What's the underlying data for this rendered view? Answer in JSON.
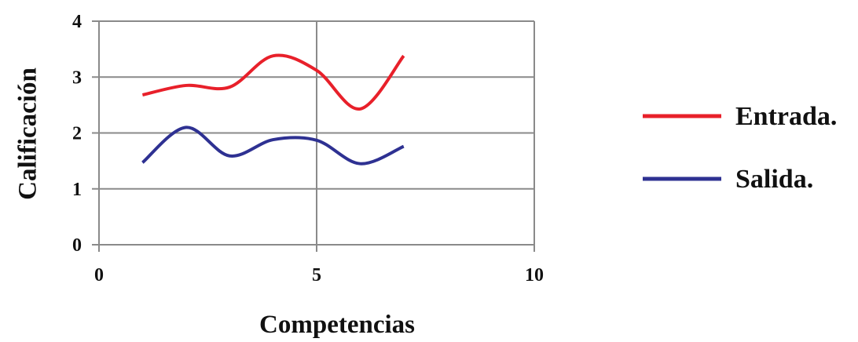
{
  "chart_data": {
    "type": "line",
    "title": "",
    "xlabel": "Competencias",
    "ylabel": "Calificación",
    "xlim": [
      0,
      10
    ],
    "ylim": [
      0,
      4
    ],
    "x_ticks": [
      0,
      5,
      10
    ],
    "y_ticks": [
      0,
      1,
      2,
      3,
      4
    ],
    "grid": true,
    "legend_position": "right",
    "series": [
      {
        "name": "Entrada.",
        "color": "#e8202a",
        "x": [
          1,
          2,
          3,
          4,
          5,
          6,
          7
        ],
        "y": [
          2.68,
          2.85,
          2.82,
          3.38,
          3.12,
          2.43,
          3.38
        ]
      },
      {
        "name": "Salida.",
        "color": "#2e3192",
        "x": [
          1,
          2,
          3,
          4,
          5,
          6,
          7
        ],
        "y": [
          1.47,
          2.1,
          1.59,
          1.88,
          1.87,
          1.45,
          1.76
        ]
      }
    ]
  }
}
